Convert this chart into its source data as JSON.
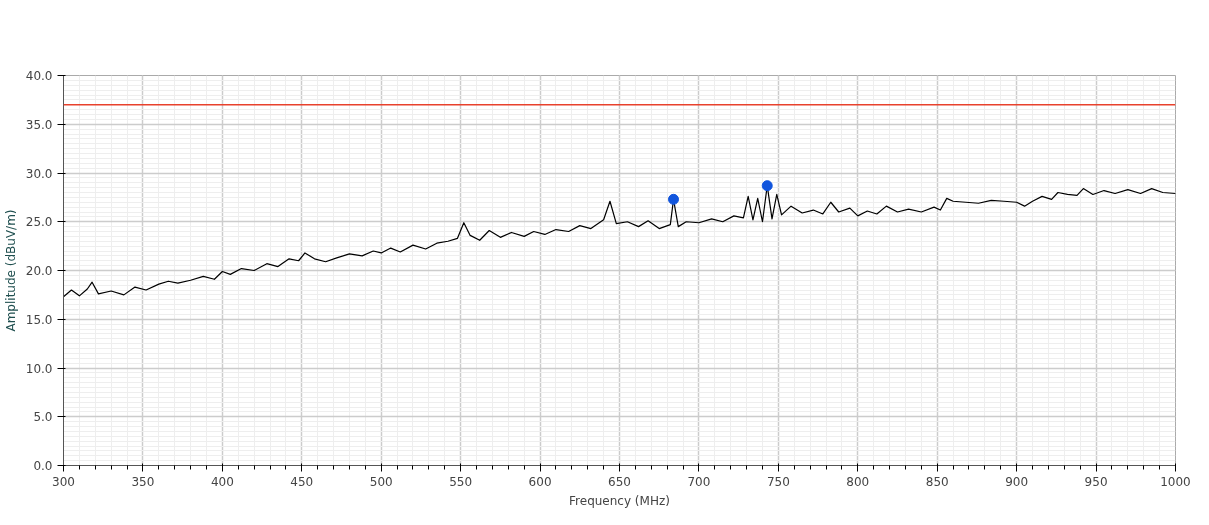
{
  "chart_data": {
    "type": "line",
    "xlabel": "Frequency (MHz)",
    "ylabel": "Amplitude (dBuV/m)",
    "xlim": [
      300,
      1000
    ],
    "ylim": [
      0,
      40
    ],
    "xticks": [
      300,
      350,
      400,
      450,
      500,
      550,
      600,
      650,
      700,
      750,
      800,
      850,
      900,
      950,
      1000
    ],
    "yticks": [
      {
        "value": 0,
        "label": "0.0"
      },
      {
        "value": 5,
        "label": "5.0"
      },
      {
        "value": 10,
        "label": "10.0"
      },
      {
        "value": 15,
        "label": "15.0"
      },
      {
        "value": 20,
        "label": "20.0"
      },
      {
        "value": 25,
        "label": "25.0"
      },
      {
        "value": 30,
        "label": "30.0"
      },
      {
        "value": 35,
        "label": "35.0"
      },
      {
        "value": 40,
        "label": "40.0"
      }
    ],
    "grid": true,
    "ref_lines": [
      {
        "axis": "y",
        "value": 37,
        "label": null,
        "color": "#e8412c"
      }
    ],
    "series": [
      {
        "color": "#000000",
        "x": [
          300,
          305,
          310,
          315,
          318,
          322,
          330,
          338,
          345,
          352,
          360,
          366,
          372,
          380,
          388,
          395,
          400,
          405,
          412,
          420,
          428,
          435,
          442,
          448,
          452,
          458,
          465,
          472,
          480,
          488,
          495,
          500,
          506,
          512,
          520,
          528,
          535,
          542,
          548,
          552,
          556,
          562,
          568,
          575,
          582,
          590,
          596,
          603,
          610,
          618,
          625,
          632,
          640,
          644,
          648,
          655,
          662,
          668,
          675,
          682,
          684,
          687,
          692,
          700,
          708,
          715,
          722,
          728,
          731,
          734,
          737,
          740,
          743,
          746,
          749,
          752,
          758,
          765,
          772,
          778,
          783,
          788,
          795,
          800,
          806,
          812,
          818,
          825,
          832,
          840,
          848,
          852,
          856,
          860,
          868,
          876,
          884,
          892,
          900,
          905,
          910,
          916,
          922,
          926,
          932,
          938,
          942,
          948,
          955,
          962,
          970,
          978,
          985,
          992,
          1000
        ],
        "values": [
          17.3,
          18.0,
          17.4,
          18.1,
          18.8,
          17.6,
          17.9,
          17.5,
          18.3,
          18.0,
          18.6,
          18.9,
          18.7,
          19.0,
          19.4,
          19.1,
          19.9,
          19.6,
          20.2,
          20.0,
          20.7,
          20.4,
          21.2,
          21.0,
          21.8,
          21.2,
          20.9,
          21.3,
          21.7,
          21.5,
          22.0,
          21.8,
          22.3,
          21.9,
          22.6,
          22.2,
          22.8,
          23.0,
          23.3,
          24.9,
          23.6,
          23.1,
          24.1,
          23.4,
          23.9,
          23.5,
          24.0,
          23.7,
          24.2,
          24.0,
          24.6,
          24.3,
          25.2,
          27.1,
          24.8,
          25.0,
          24.5,
          25.1,
          24.3,
          24.7,
          27.3,
          24.5,
          25.0,
          24.9,
          25.3,
          25.0,
          25.6,
          25.4,
          27.6,
          25.2,
          27.4,
          25.0,
          28.7,
          25.3,
          27.8,
          25.7,
          26.6,
          25.9,
          26.2,
          25.8,
          27.0,
          26.0,
          26.4,
          25.6,
          26.1,
          25.8,
          26.6,
          26.0,
          26.3,
          26.0,
          26.5,
          26.2,
          27.4,
          27.1,
          27.0,
          26.9,
          27.2,
          27.1,
          27.0,
          26.6,
          27.1,
          27.6,
          27.3,
          28.0,
          27.8,
          27.7,
          28.4,
          27.8,
          28.2,
          27.9,
          28.3,
          27.9,
          28.4,
          28.0,
          27.9
        ]
      },
      {
        "type": "scatter",
        "color": "#1155dd",
        "marker": "circle",
        "x": [
          684,
          743
        ],
        "values": [
          27.3,
          28.7
        ]
      }
    ]
  }
}
